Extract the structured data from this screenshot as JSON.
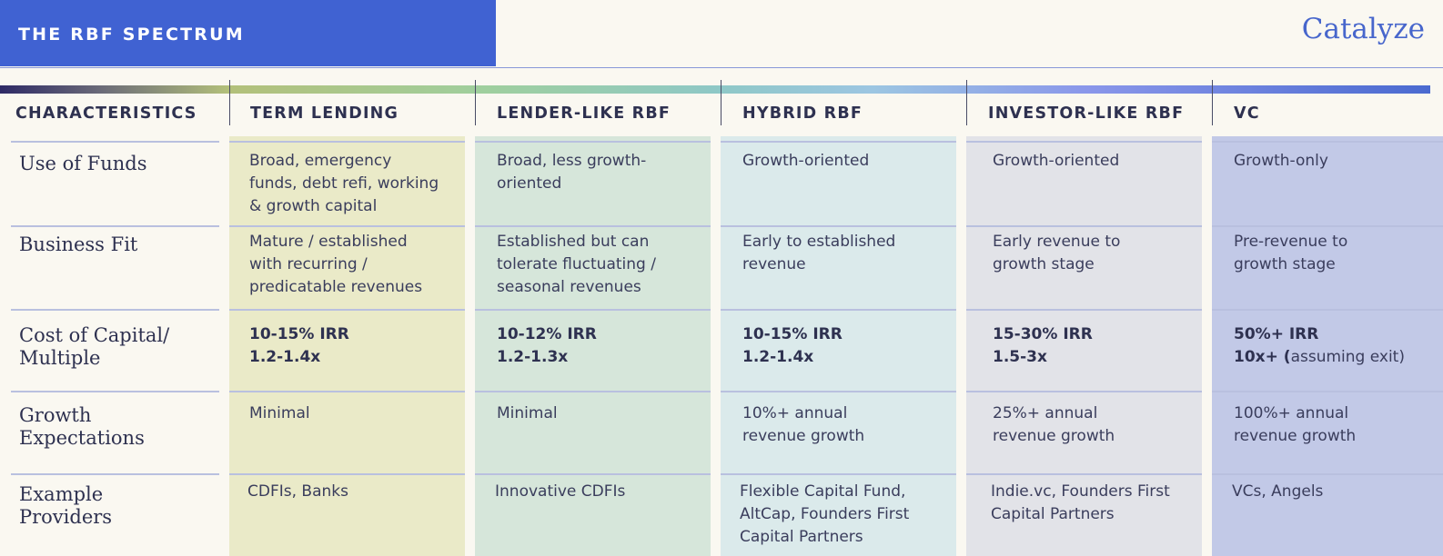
{
  "header": {
    "title": "THE RBF SPECTRUM",
    "brand": "Catalyze"
  },
  "columns": {
    "characteristics": "CHARACTERISTICS",
    "term_lending": "TERM LENDING",
    "lender_like": "LENDER-LIKE RBF",
    "hybrid": "HYBRID RBF",
    "investor_like": "INVESTOR-LIKE RBF",
    "vc": "VC"
  },
  "colors": {
    "title_bar": "#4062d2",
    "term_lending": "#eaeac8",
    "lender_like": "#d6e6da",
    "hybrid": "#dbeaeb",
    "investor_like": "#e2e3e8",
    "vc": "#c2c9e7"
  },
  "rows": {
    "use_of_funds": {
      "label": "Use of Funds",
      "term_lending": [
        "Broad, emergency",
        "funds, debt refi, working",
        "& growth capital"
      ],
      "lender_like": [
        "Broad, less growth-",
        "oriented"
      ],
      "hybrid": [
        "Growth-oriented"
      ],
      "investor_like": [
        "Growth-oriented"
      ],
      "vc": [
        "Growth-only"
      ]
    },
    "business_fit": {
      "label": "Business Fit",
      "term_lending": [
        "Mature / established",
        "with recurring /",
        "predicatable revenues"
      ],
      "lender_like": [
        "Established but can",
        "tolerate fluctuating /",
        "seasonal revenues"
      ],
      "hybrid": [
        "Early to established",
        "revenue"
      ],
      "investor_like": [
        "Early revenue to",
        "growth stage"
      ],
      "vc": [
        "Pre-revenue to",
        "growth stage"
      ]
    },
    "cost_of_capital": {
      "label": [
        "Cost of Capital/",
        "Multiple"
      ],
      "term_lending": {
        "irr": "10-15% IRR",
        "multiple": "1.2-1.4x"
      },
      "lender_like": {
        "irr": "10-12% IRR",
        "multiple": "1.2-1.3x"
      },
      "hybrid": {
        "irr": "10-15% IRR",
        "multiple": "1.2-1.4x"
      },
      "investor_like": {
        "irr": "15-30% IRR",
        "multiple": "1.5-3x"
      },
      "vc": {
        "irr": "50%+ IRR",
        "multiple": "10x+ (",
        "note": "assuming exit)"
      }
    },
    "growth_expectations": {
      "label": [
        "Growth",
        "Expectations"
      ],
      "term_lending": [
        "Minimal"
      ],
      "lender_like": [
        "Minimal"
      ],
      "hybrid": [
        "10%+ annual",
        "revenue growth"
      ],
      "investor_like": [
        "25%+ annual",
        "revenue growth"
      ],
      "vc": [
        "100%+ annual",
        "revenue growth"
      ]
    },
    "example_providers": {
      "label": [
        "Example",
        "Providers"
      ],
      "term_lending": [
        "CDFIs, Banks"
      ],
      "lender_like": [
        "Innovative CDFIs"
      ],
      "hybrid": [
        "Flexible Capital Fund,",
        "AltCap, Founders First",
        "Capital Partners"
      ],
      "investor_like": [
        "Indie.vc, Founders First",
        "Capital Partners"
      ],
      "vc": [
        "VCs, Angels"
      ]
    }
  }
}
